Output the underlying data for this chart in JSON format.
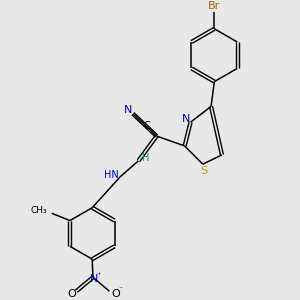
{
  "bg_color": "#e8e8e8",
  "atoms": {
    "Br": {
      "color": "#b35900",
      "fontsize": 8
    },
    "N": {
      "color": "#0000cc",
      "fontsize": 8
    },
    "S": {
      "color": "#b8a000",
      "fontsize": 8
    },
    "O": {
      "color": "#000000",
      "fontsize": 8
    },
    "C": {
      "color": "#000000",
      "fontsize": 8
    },
    "H": {
      "color": "#2e8b57",
      "fontsize": 7
    }
  },
  "lw": 1.1,
  "dlw": 1.0,
  "doff": 0.045
}
